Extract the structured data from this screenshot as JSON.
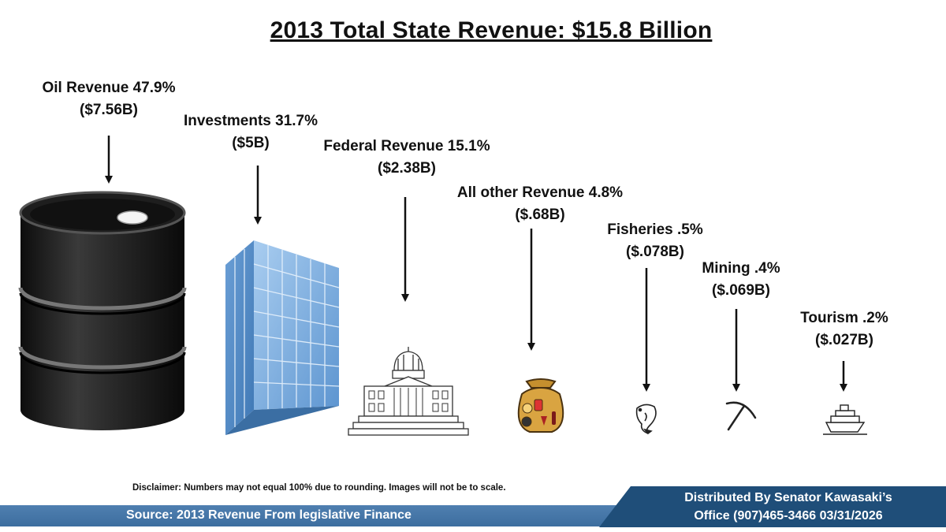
{
  "chart_data": {
    "type": "pictogram",
    "title": "2013 Total State Revenue: $15.8 Billion",
    "total": "$15.8 Billion",
    "categories": [
      {
        "name": "Oil Revenue",
        "percent_label": "47.9%",
        "percent": 47.9,
        "amount_label": "($7.56B)",
        "amount_billions": 7.56,
        "icon": "oil-barrel-icon"
      },
      {
        "name": "Investments",
        "percent_label": "31.7%",
        "percent": 31.7,
        "amount_label": "($5B)",
        "amount_billions": 5.0,
        "icon": "office-building-icon"
      },
      {
        "name": "Federal Revenue",
        "percent_label": "15.1%",
        "percent": 15.1,
        "amount_label": "($2.38B)",
        "amount_billions": 2.38,
        "icon": "capitol-building-icon"
      },
      {
        "name": "All other Revenue",
        "percent_label": "4.8%",
        "percent": 4.8,
        "amount_label": "($.68B)",
        "amount_billions": 0.68,
        "icon": "money-bag-icon"
      },
      {
        "name": "Fisheries",
        "percent_label": ".5%",
        "percent": 0.5,
        "amount_label": "($.078B)",
        "amount_billions": 0.078,
        "icon": "fish-icon"
      },
      {
        "name": "Mining",
        "percent_label": ".4%",
        "percent": 0.4,
        "amount_label": "($.069B)",
        "amount_billions": 0.069,
        "icon": "pickaxe-icon"
      },
      {
        "name": "Tourism",
        "percent_label": ".2%",
        "percent": 0.2,
        "amount_label": "($.027B)",
        "amount_billions": 0.027,
        "icon": "cruise-ship-icon"
      }
    ]
  },
  "footer": {
    "disclaimer": "Disclaimer: Numbers may not equal  100% due to rounding. Images will not be to scale.",
    "source": "Source:  2013 Revenue From legislative Finance",
    "distributed_line1": "Distributed By Senator Kawasaki’s",
    "distributed_line2": "Office (907)465-3466 03/31/2026"
  },
  "colors": {
    "barrel": "#1a1a1a",
    "building_glass": "#7fb0e0",
    "band_light": "#4a7aab",
    "band_dark": "#1f4e79",
    "bag": "#d9a441"
  }
}
